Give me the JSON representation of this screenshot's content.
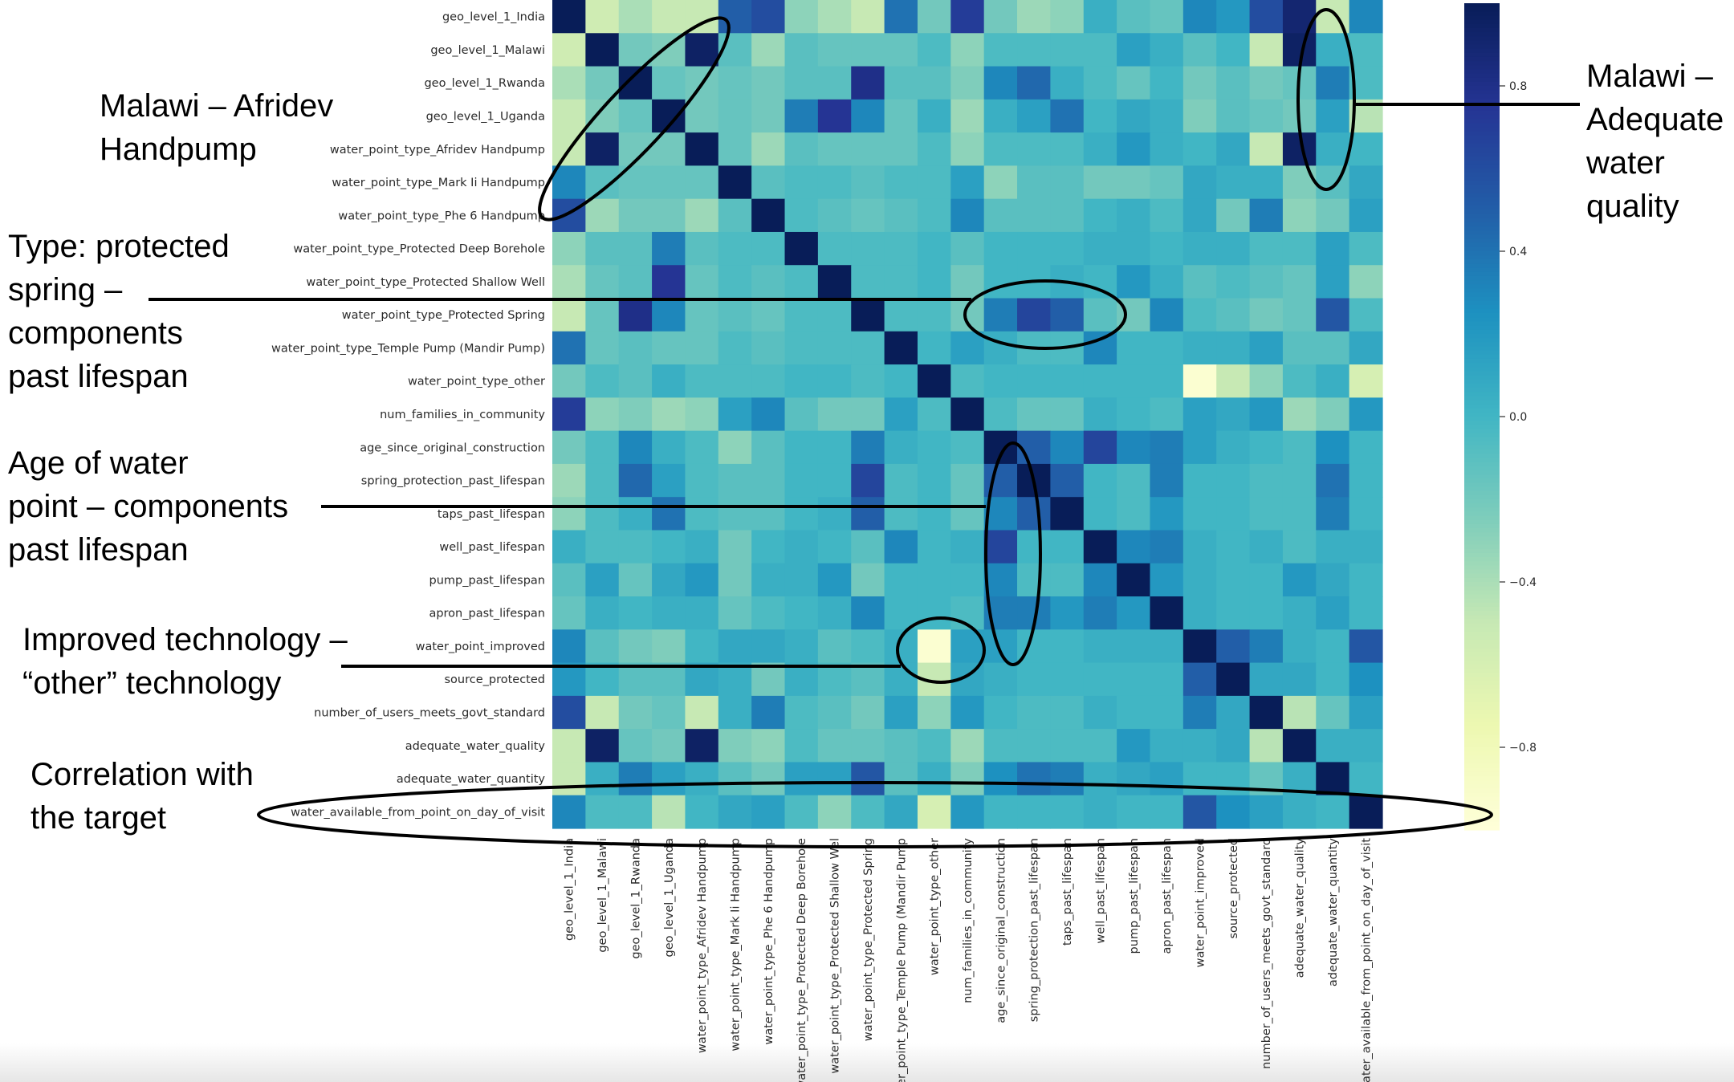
{
  "chart_data": {
    "type": "heatmap",
    "labels": [
      "geo_level_1_India",
      "geo_level_1_Malawi",
      "geo_level_1_Rwanda",
      "geo_level_1_Uganda",
      "water_point_type_Afridev Handpump",
      "water_point_type_Mark Ii Handpump",
      "water_point_type_Phe 6 Handpump",
      "water_point_type_Protected Deep Borehole",
      "water_point_type_Protected Shallow Well",
      "water_point_type_Protected Spring",
      "water_point_type_Temple Pump (Mandir Pump)",
      "water_point_type_other",
      "num_families_in_community",
      "age_since_original_construction",
      "spring_protection_past_lifespan",
      "taps_past_lifespan",
      "well_past_lifespan",
      "pump_past_lifespan",
      "apron_past_lifespan",
      "water_point_improved",
      "source_protected",
      "number_of_users_meets_govt_standard",
      "adequate_water_quality",
      "adequate_water_quantity",
      "water_available_from_point_on_day_of_visit"
    ],
    "xlabels": [
      "geo_level_1_India",
      "geo_level_1_Malawi",
      "geo_level_1_Rwanda",
      "geo_level_1_Uganda",
      "water_point_type_Afridev Handpump",
      "water_point_type_Mark Ii Handpump",
      "water_point_type_Phe 6 Handpump",
      "water_point_type_Protected Deep Borehole",
      "water_point_type_Protected Shallow Wel",
      "water_point_type_Protected Spring",
      "water_point_type_Temple Pump (Mandir Pump",
      "water_point_type_other",
      "num_families_in_community",
      "age_since_original_construction",
      "spring_protection_past_lifespan",
      "taps_past_lifespan",
      "well_past_lifespan",
      "pump_past_lifespan",
      "apron_past_lifespan",
      "water_point_improved",
      "source_protected",
      "number_of_users_meets_govt_standard",
      "adequate_water_quality",
      "adequate_water_quantity",
      "water_available_from_point_on_day_of_visit"
    ],
    "values": [
      [
        1.0,
        -0.55,
        -0.4,
        -0.5,
        -0.5,
        0.5,
        0.6,
        -0.3,
        -0.4,
        -0.5,
        0.4,
        -0.2,
        0.7,
        -0.2,
        -0.35,
        -0.3,
        0.05,
        -0.1,
        -0.15,
        0.3,
        0.2,
        0.6,
        0.9,
        -0.5,
        0.3
      ],
      [
        -0.55,
        1.0,
        -0.2,
        -0.25,
        0.95,
        -0.1,
        -0.35,
        -0.1,
        -0.15,
        -0.15,
        -0.15,
        -0.05,
        -0.3,
        -0.05,
        -0.05,
        -0.05,
        -0.05,
        0.15,
        0.05,
        -0.1,
        0.0,
        -0.5,
        0.95,
        0.05,
        -0.05
      ],
      [
        -0.4,
        -0.2,
        1.0,
        -0.15,
        -0.2,
        -0.15,
        -0.2,
        -0.1,
        -0.1,
        0.8,
        -0.1,
        -0.1,
        -0.25,
        0.3,
        0.45,
        0.05,
        -0.05,
        -0.15,
        0.0,
        -0.2,
        -0.1,
        -0.2,
        -0.15,
        0.35,
        -0.05
      ],
      [
        -0.5,
        -0.25,
        -0.15,
        1.0,
        -0.2,
        -0.15,
        -0.2,
        0.35,
        0.75,
        0.3,
        -0.15,
        0.05,
        -0.35,
        0.05,
        0.15,
        0.4,
        0.0,
        0.1,
        0.05,
        -0.25,
        -0.1,
        -0.15,
        -0.2,
        0.15,
        -0.45
      ],
      [
        -0.5,
        0.95,
        -0.2,
        -0.2,
        1.0,
        -0.15,
        -0.35,
        -0.1,
        -0.15,
        -0.15,
        -0.15,
        -0.05,
        -0.3,
        -0.05,
        -0.05,
        -0.05,
        0.05,
        0.2,
        0.05,
        0.0,
        0.1,
        -0.5,
        0.95,
        0.05,
        0.0
      ],
      [
        0.3,
        -0.1,
        -0.15,
        -0.15,
        -0.15,
        1.0,
        -0.1,
        -0.05,
        -0.05,
        -0.1,
        -0.05,
        -0.05,
        0.15,
        -0.3,
        -0.1,
        -0.1,
        -0.2,
        -0.2,
        -0.15,
        0.1,
        0.05,
        0.05,
        -0.25,
        -0.1,
        0.1
      ],
      [
        0.6,
        -0.35,
        -0.2,
        -0.2,
        -0.35,
        -0.1,
        1.0,
        -0.05,
        -0.1,
        -0.15,
        -0.1,
        -0.05,
        0.3,
        -0.1,
        -0.1,
        -0.1,
        0.0,
        0.05,
        -0.05,
        0.1,
        -0.2,
        0.35,
        -0.3,
        -0.2,
        0.15
      ],
      [
        -0.3,
        -0.1,
        -0.1,
        0.35,
        -0.1,
        -0.05,
        -0.05,
        1.0,
        -0.05,
        -0.05,
        -0.05,
        0.0,
        -0.1,
        0.0,
        0.0,
        0.0,
        0.05,
        0.05,
        0.0,
        0.05,
        0.05,
        -0.05,
        -0.05,
        0.15,
        -0.05
      ],
      [
        -0.4,
        -0.15,
        -0.1,
        0.75,
        -0.15,
        -0.05,
        -0.1,
        -0.05,
        1.0,
        -0.05,
        -0.05,
        0.0,
        -0.2,
        0.0,
        0.0,
        0.05,
        0.0,
        0.2,
        0.05,
        -0.1,
        -0.05,
        -0.1,
        -0.15,
        0.15,
        -0.3
      ],
      [
        -0.5,
        -0.15,
        0.8,
        0.3,
        -0.15,
        -0.1,
        -0.15,
        -0.05,
        -0.05,
        1.0,
        -0.05,
        -0.05,
        -0.2,
        0.35,
        0.65,
        0.5,
        -0.1,
        -0.2,
        0.3,
        -0.05,
        -0.1,
        -0.2,
        -0.15,
        0.55,
        -0.05
      ],
      [
        0.4,
        -0.15,
        -0.1,
        -0.15,
        -0.15,
        -0.05,
        -0.1,
        -0.05,
        -0.05,
        -0.05,
        1.0,
        0.0,
        0.15,
        0.05,
        -0.05,
        -0.05,
        0.3,
        0.0,
        0.0,
        0.05,
        0.05,
        0.15,
        -0.1,
        -0.1,
        0.1
      ],
      [
        -0.2,
        -0.05,
        -0.1,
        0.05,
        -0.05,
        -0.05,
        -0.05,
        0.0,
        0.0,
        -0.05,
        0.0,
        1.0,
        -0.05,
        0.0,
        0.0,
        0.0,
        0.0,
        0.0,
        0.0,
        -0.95,
        -0.5,
        -0.3,
        -0.05,
        0.05,
        -0.6
      ],
      [
        0.7,
        -0.3,
        -0.25,
        -0.35,
        -0.3,
        0.15,
        0.3,
        -0.1,
        -0.2,
        -0.2,
        0.15,
        -0.05,
        1.0,
        -0.05,
        -0.15,
        -0.15,
        0.05,
        0.0,
        -0.05,
        0.15,
        0.1,
        0.2,
        -0.35,
        -0.25,
        0.2
      ],
      [
        -0.2,
        -0.05,
        0.3,
        0.05,
        -0.05,
        -0.3,
        -0.1,
        0.0,
        0.0,
        0.35,
        0.05,
        0.0,
        -0.05,
        1.0,
        0.5,
        0.3,
        0.65,
        0.3,
        0.35,
        0.15,
        0.05,
        0.0,
        -0.05,
        0.25,
        0.0
      ],
      [
        -0.35,
        -0.05,
        0.45,
        0.15,
        -0.05,
        -0.1,
        -0.1,
        0.0,
        0.0,
        0.65,
        -0.05,
        0.0,
        -0.15,
        0.5,
        1.0,
        0.5,
        0.0,
        -0.05,
        0.35,
        0.0,
        0.0,
        -0.05,
        -0.05,
        0.4,
        0.0
      ],
      [
        -0.3,
        -0.05,
        0.05,
        0.4,
        -0.05,
        -0.1,
        -0.1,
        0.0,
        0.05,
        0.5,
        -0.05,
        0.0,
        -0.15,
        0.3,
        0.5,
        1.0,
        0.0,
        -0.05,
        0.2,
        0.0,
        0.0,
        -0.05,
        -0.05,
        0.35,
        0.0
      ],
      [
        0.05,
        -0.05,
        -0.05,
        0.0,
        0.05,
        -0.2,
        0.0,
        0.05,
        0.0,
        -0.1,
        0.3,
        0.0,
        0.05,
        0.65,
        0.0,
        0.0,
        1.0,
        0.3,
        0.35,
        0.05,
        0.0,
        0.05,
        -0.05,
        0.05,
        0.05
      ],
      [
        -0.1,
        0.15,
        -0.15,
        0.1,
        0.2,
        -0.2,
        0.05,
        0.05,
        0.2,
        -0.2,
        0.0,
        0.0,
        0.0,
        0.3,
        -0.05,
        -0.05,
        0.3,
        1.0,
        0.2,
        0.05,
        0.0,
        0.0,
        0.2,
        0.1,
        0.0
      ],
      [
        -0.15,
        0.05,
        0.0,
        0.05,
        0.05,
        -0.15,
        -0.05,
        0.0,
        0.05,
        0.3,
        0.0,
        0.0,
        -0.05,
        0.35,
        0.35,
        0.2,
        0.35,
        0.2,
        1.0,
        0.05,
        0.0,
        0.0,
        0.05,
        0.15,
        0.0
      ],
      [
        0.3,
        -0.1,
        -0.2,
        -0.25,
        0.0,
        0.1,
        0.1,
        0.05,
        -0.1,
        -0.05,
        0.05,
        -0.95,
        0.15,
        0.15,
        0.0,
        0.0,
        0.05,
        0.05,
        0.05,
        1.0,
        0.5,
        0.35,
        0.05,
        0.0,
        0.55
      ],
      [
        0.2,
        0.0,
        -0.1,
        -0.1,
        0.1,
        0.05,
        -0.2,
        0.05,
        -0.05,
        -0.1,
        0.05,
        -0.5,
        0.1,
        0.05,
        0.0,
        0.0,
        0.0,
        0.0,
        0.0,
        0.5,
        1.0,
        0.1,
        0.1,
        0.0,
        0.25
      ],
      [
        0.6,
        -0.5,
        -0.2,
        -0.15,
        -0.5,
        0.05,
        0.35,
        -0.05,
        -0.1,
        -0.2,
        0.15,
        -0.3,
        0.2,
        0.0,
        -0.05,
        -0.05,
        0.05,
        0.0,
        0.0,
        0.35,
        0.1,
        1.0,
        -0.45,
        -0.15,
        0.15
      ],
      [
        -0.5,
        0.95,
        -0.15,
        -0.2,
        0.95,
        -0.25,
        -0.3,
        -0.05,
        -0.15,
        -0.15,
        -0.1,
        -0.05,
        -0.35,
        -0.05,
        -0.05,
        -0.05,
        -0.05,
        0.2,
        0.05,
        0.05,
        0.1,
        -0.45,
        1.0,
        0.05,
        0.05
      ],
      [
        -0.5,
        0.05,
        0.35,
        0.15,
        0.05,
        -0.1,
        -0.2,
        0.15,
        0.15,
        0.55,
        -0.1,
        0.05,
        -0.25,
        0.25,
        0.4,
        0.35,
        0.05,
        0.1,
        0.15,
        0.0,
        0.0,
        -0.15,
        0.05,
        1.0,
        0.0
      ],
      [
        0.3,
        -0.05,
        -0.05,
        -0.45,
        0.0,
        0.1,
        0.15,
        -0.05,
        -0.3,
        -0.05,
        0.1,
        -0.6,
        0.2,
        0.0,
        0.0,
        0.0,
        0.05,
        0.0,
        0.0,
        0.55,
        0.25,
        0.15,
        0.05,
        0.0,
        1.0
      ]
    ],
    "colormap": "YlGnBu",
    "vmin": -1.0,
    "vmax": 1.0,
    "colorbar_ticks": [
      "0.8",
      "0.4",
      "0.0",
      "−0.4",
      "−0.8"
    ],
    "colorbar_tick_values": [
      0.8,
      0.4,
      0.0,
      -0.4,
      -0.8
    ]
  },
  "annotations": [
    {
      "id": "malawi-afridev",
      "lines": [
        "Malawi – Afridev",
        "Handpump"
      ]
    },
    {
      "id": "malawi-quality",
      "lines": [
        "Malawi –",
        "Adequate",
        "water",
        "quality"
      ]
    },
    {
      "id": "protected-spring",
      "lines": [
        "Type: protected",
        "spring –",
        "components",
        "past lifespan"
      ]
    },
    {
      "id": "age-components",
      "lines": [
        "Age of water",
        "point – components",
        "past lifespan"
      ]
    },
    {
      "id": "improved-other",
      "lines": [
        "Improved technology –",
        "“other” technology"
      ]
    },
    {
      "id": "target-correlation",
      "lines": [
        "Correlation with",
        "the target"
      ]
    }
  ],
  "colors": {
    "annotation_ink": "#000000",
    "tick_text": "#2a2a2a",
    "background": "#ffffff"
  }
}
